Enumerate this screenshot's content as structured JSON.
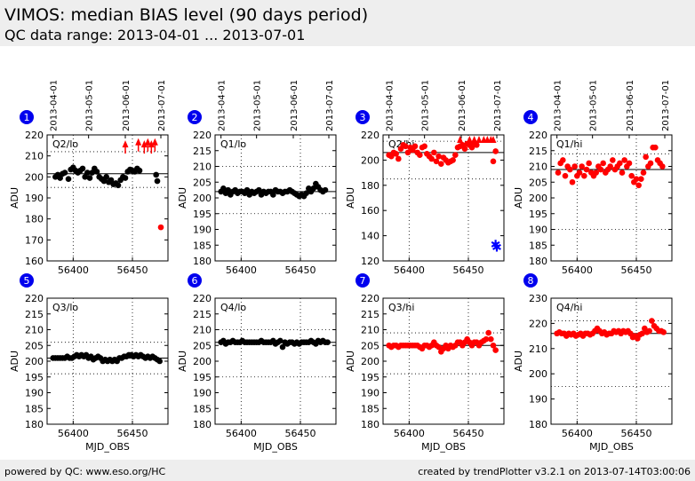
{
  "header": {
    "title": "VIMOS: median BIAS level (90 days period)",
    "subtitle": "QC data range: 2013-04-01 ... 2013-07-01"
  },
  "footer": {
    "left": "powered by QC: www.eso.org/HC",
    "right": "created by trendPlotter v3.2.1 on 2013-07-14T03:00:06"
  },
  "top_axis": {
    "dates": [
      "2013-04-01",
      "2013-05-01",
      "2013-06-01",
      "2013-07-01"
    ],
    "mjd": [
      56383,
      56413,
      56444,
      56474
    ]
  },
  "colors": {
    "lo": "#000000",
    "hi": "#ff0000",
    "outlier": "#0000ff",
    "badge": "#0000ee"
  },
  "chart_data": [
    {
      "type": "scatter",
      "badge": "1",
      "label": "Q2/lo",
      "xlabel": "",
      "ylabel": "ADU",
      "xlim": [
        56378,
        56480
      ],
      "ylim": [
        160,
        220
      ],
      "yticks": [
        160,
        170,
        180,
        190,
        200,
        210,
        220
      ],
      "xticks": [
        56400,
        56450
      ],
      "ref_line": 201.5,
      "dotted_lines": [
        212,
        195
      ],
      "color": "#000000",
      "x": [
        56385,
        56387,
        56389,
        56391,
        56393,
        56396,
        56398,
        56400,
        56402,
        56404,
        56406,
        56408,
        56410,
        56412,
        56414,
        56416,
        56418,
        56420,
        56422,
        56424,
        56426,
        56428,
        56430,
        56432,
        56434,
        56436,
        56438,
        56440,
        56442,
        56444,
        56446,
        56448,
        56450,
        56452,
        56454,
        56456,
        56470
      ],
      "y": [
        200,
        201,
        199.5,
        201.5,
        202,
        199,
        203.5,
        204.5,
        203,
        202,
        203,
        204,
        200,
        202,
        199.5,
        202,
        204,
        202.5,
        200,
        199,
        198,
        200,
        197.5,
        198.5,
        196.5,
        197,
        196,
        198.5,
        200,
        199.5,
        202.5,
        203.5,
        203,
        202.5,
        204,
        203,
        201
      ],
      "markers": [
        {
          "x": 56444,
          "y": 217,
          "kind": "arrow",
          "color": "#ff0000"
        },
        {
          "x": 56455,
          "y": 218,
          "kind": "arrow",
          "color": "#ff0000"
        },
        {
          "x": 56460,
          "y": 217,
          "kind": "arrow",
          "color": "#ff0000"
        },
        {
          "x": 56463,
          "y": 218,
          "kind": "arrow",
          "color": "#ff0000"
        },
        {
          "x": 56466,
          "y": 217,
          "kind": "arrow",
          "color": "#ff0000"
        },
        {
          "x": 56469,
          "y": 218,
          "kind": "arrow",
          "color": "#ff0000"
        },
        {
          "x": 56471,
          "y": 198,
          "kind": "dot",
          "color": "#000000"
        },
        {
          "x": 56474,
          "y": 176,
          "kind": "dot",
          "color": "#ff0000"
        }
      ]
    },
    {
      "type": "scatter",
      "badge": "2",
      "label": "Q1/lo",
      "xlabel": "",
      "ylabel": "ADU",
      "xlim": [
        56378,
        56480
      ],
      "ylim": [
        180,
        220
      ],
      "yticks": [
        180,
        185,
        190,
        195,
        200,
        205,
        210,
        215,
        220
      ],
      "xticks": [
        56400,
        56450
      ],
      "ref_line": 202,
      "dotted_lines": [
        210,
        195
      ],
      "color": "#000000",
      "x": [
        56383,
        56385,
        56387,
        56389,
        56391,
        56393,
        56395,
        56397,
        56399,
        56401,
        56403,
        56405,
        56407,
        56409,
        56411,
        56413,
        56415,
        56417,
        56419,
        56421,
        56423,
        56425,
        56427,
        56429,
        56431,
        56433,
        56435,
        56437,
        56439,
        56441,
        56443,
        56445,
        56447,
        56449,
        56451,
        56453,
        56455,
        56457,
        56459,
        56461,
        56463,
        56465,
        56467,
        56469,
        56471
      ],
      "y": [
        202,
        203,
        201.5,
        202.5,
        201,
        202,
        202.5,
        201.5,
        202,
        202,
        201.5,
        202.5,
        201,
        202,
        201.5,
        202,
        202.5,
        201,
        202,
        201.5,
        202,
        202,
        201,
        202.5,
        202,
        202,
        201.5,
        202,
        202,
        202.5,
        202,
        201.5,
        201,
        200.5,
        201,
        200.5,
        201.5,
        203,
        202,
        203,
        204.5,
        203.5,
        202.5,
        202,
        202.5
      ],
      "markers": []
    },
    {
      "type": "scatter",
      "badge": "3",
      "label": "Q2/hi",
      "xlabel": "",
      "ylabel": "ADU",
      "xlim": [
        56378,
        56480
      ],
      "ylim": [
        120,
        220
      ],
      "yticks": [
        120,
        140,
        160,
        180,
        200,
        220
      ],
      "xticks": [
        56400,
        56450
      ],
      "ref_line": 206,
      "dotted_lines": [
        215,
        185
      ],
      "color": "#ff0000",
      "x": [
        56383,
        56385,
        56387,
        56389,
        56391,
        56393,
        56395,
        56397,
        56399,
        56401,
        56403,
        56405,
        56407,
        56409,
        56411,
        56413,
        56415,
        56417,
        56419,
        56421,
        56423,
        56425,
        56427,
        56429,
        56431,
        56433,
        56435,
        56437,
        56439,
        56441,
        56443,
        56445,
        56447,
        56449,
        56451,
        56453,
        56455,
        56457,
        56471,
        56473
      ],
      "y": [
        204,
        203,
        206,
        205,
        201,
        209,
        212,
        211,
        206,
        210,
        208,
        211,
        206,
        204,
        210,
        211,
        205,
        203,
        201,
        206,
        199,
        203,
        197,
        202,
        200,
        198,
        199,
        200,
        204,
        210,
        211,
        212,
        209,
        213,
        212,
        210,
        214,
        212,
        199,
        207
      ],
      "markers": [
        {
          "x": 56443,
          "y": 224,
          "kind": "arrow",
          "color": "#ff0000"
        },
        {
          "x": 56451,
          "y": 224,
          "kind": "arrow",
          "color": "#ff0000"
        },
        {
          "x": 56455,
          "y": 224,
          "kind": "arrow",
          "color": "#ff0000"
        },
        {
          "x": 56459,
          "y": 224,
          "kind": "arrow",
          "color": "#ff0000"
        },
        {
          "x": 56463,
          "y": 224,
          "kind": "arrow",
          "color": "#ff0000"
        },
        {
          "x": 56466,
          "y": 224,
          "kind": "arrow",
          "color": "#ff0000"
        },
        {
          "x": 56469,
          "y": 224,
          "kind": "arrow",
          "color": "#ff0000"
        },
        {
          "x": 56471,
          "y": 224,
          "kind": "arrow",
          "color": "#ff0000"
        },
        {
          "x": 56473,
          "y": 133,
          "kind": "star",
          "color": "#0000ff"
        },
        {
          "x": 56474,
          "y": 131,
          "kind": "star",
          "color": "#0000ff"
        }
      ]
    },
    {
      "type": "scatter",
      "badge": "4",
      "label": "Q1/hi",
      "xlabel": "",
      "ylabel": "ADU",
      "xlim": [
        56378,
        56480
      ],
      "ylim": [
        180,
        220
      ],
      "yticks": [
        180,
        185,
        190,
        195,
        200,
        205,
        210,
        215,
        220
      ],
      "xticks": [
        56400,
        56450
      ],
      "ref_line": 209,
      "dotted_lines": [
        214,
        190
      ],
      "color": "#ff0000",
      "x": [
        56384,
        56386,
        56388,
        56390,
        56392,
        56394,
        56396,
        56398,
        56400,
        56402,
        56404,
        56406,
        56408,
        56410,
        56412,
        56414,
        56416,
        56418,
        56420,
        56422,
        56424,
        56426,
        56428,
        56430,
        56432,
        56434,
        56436,
        56438,
        56440,
        56442,
        56444,
        56446,
        56448,
        56450,
        56452,
        56454,
        56456,
        56458,
        56460,
        56462,
        56464,
        56466,
        56468,
        56470,
        56472
      ],
      "y": [
        208,
        211,
        212,
        207,
        210,
        209,
        205,
        210,
        207,
        208,
        210,
        207,
        209,
        211,
        208,
        207,
        208,
        210,
        209,
        211,
        208,
        209,
        210,
        212,
        209,
        210,
        211,
        208,
        212,
        210,
        211,
        207,
        205,
        206,
        204,
        206,
        208,
        213,
        210,
        211,
        216,
        216,
        212,
        211,
        210
      ],
      "markers": []
    },
    {
      "type": "scatter",
      "badge": "5",
      "label": "Q3/lo",
      "xlabel": "MJD_OBS",
      "ylabel": "ADU",
      "xlim": [
        56378,
        56480
      ],
      "ylim": [
        180,
        220
      ],
      "yticks": [
        180,
        185,
        190,
        195,
        200,
        205,
        210,
        215,
        220
      ],
      "xticks": [
        56400,
        56450
      ],
      "ref_line": 201,
      "dotted_lines": [
        206,
        196
      ],
      "color": "#000000",
      "x": [
        56383,
        56385,
        56387,
        56389,
        56391,
        56393,
        56395,
        56397,
        56399,
        56401,
        56403,
        56405,
        56407,
        56409,
        56411,
        56413,
        56415,
        56417,
        56419,
        56421,
        56423,
        56425,
        56427,
        56429,
        56431,
        56433,
        56435,
        56437,
        56439,
        56441,
        56443,
        56445,
        56447,
        56449,
        56451,
        56453,
        56455,
        56457,
        56459,
        56461,
        56463,
        56465,
        56467,
        56469,
        56471,
        56473
      ],
      "y": [
        201,
        201,
        201,
        201,
        201,
        201,
        201.5,
        201,
        201,
        201.5,
        202,
        201.5,
        202,
        201.5,
        202,
        201,
        201.5,
        200.5,
        201,
        201.5,
        201,
        200,
        200.5,
        200,
        200.5,
        200,
        200.5,
        200,
        201,
        201,
        201.5,
        201.5,
        202,
        202,
        201.5,
        202,
        201.5,
        202,
        201.5,
        201,
        201.5,
        201,
        201.5,
        201,
        200.5,
        200
      ],
      "markers": []
    },
    {
      "type": "scatter",
      "badge": "6",
      "label": "Q4/lo",
      "xlabel": "MJD_OBS",
      "ylabel": "ADU",
      "xlim": [
        56378,
        56480
      ],
      "ylim": [
        180,
        220
      ],
      "yticks": [
        180,
        185,
        190,
        195,
        200,
        205,
        210,
        215,
        220
      ],
      "xticks": [
        56400,
        56450
      ],
      "ref_line": 206,
      "dotted_lines": [
        210,
        195
      ],
      "color": "#000000",
      "x": [
        56383,
        56385,
        56387,
        56389,
        56391,
        56393,
        56395,
        56397,
        56399,
        56401,
        56403,
        56405,
        56407,
        56409,
        56411,
        56413,
        56415,
        56417,
        56419,
        56421,
        56423,
        56425,
        56427,
        56429,
        56431,
        56433,
        56435,
        56437,
        56439,
        56441,
        56443,
        56445,
        56447,
        56449,
        56451,
        56453,
        56455,
        56457,
        56459,
        56461,
        56463,
        56465,
        56467,
        56469,
        56471,
        56473
      ],
      "y": [
        206,
        206.5,
        205.5,
        206,
        206,
        206.5,
        206,
        206,
        206,
        206.5,
        206,
        206,
        206,
        206,
        206,
        206,
        206,
        206.5,
        206,
        206,
        206,
        206,
        206.5,
        205.5,
        206,
        206.5,
        204.5,
        206,
        205.5,
        206,
        206,
        205.5,
        206,
        205.5,
        206,
        206,
        206,
        206,
        206.5,
        206,
        205.5,
        206.5,
        206,
        206.5,
        206,
        206
      ],
      "markers": []
    },
    {
      "type": "scatter",
      "badge": "7",
      "label": "Q3/hi",
      "xlabel": "MJD_OBS",
      "ylabel": "ADU",
      "xlim": [
        56378,
        56480
      ],
      "ylim": [
        180,
        220
      ],
      "yticks": [
        180,
        185,
        190,
        195,
        200,
        205,
        210,
        215,
        220
      ],
      "xticks": [
        56400,
        56450
      ],
      "ref_line": 205,
      "dotted_lines": [
        209,
        196
      ],
      "color": "#ff0000",
      "x": [
        56383,
        56385,
        56387,
        56389,
        56391,
        56393,
        56395,
        56397,
        56399,
        56401,
        56403,
        56405,
        56407,
        56409,
        56411,
        56413,
        56415,
        56417,
        56419,
        56421,
        56423,
        56425,
        56427,
        56429,
        56431,
        56433,
        56435,
        56437,
        56439,
        56441,
        56443,
        56445,
        56447,
        56449,
        56451,
        56453,
        56455,
        56457,
        56459,
        56461,
        56463,
        56465,
        56467,
        56469,
        56471,
        56473
      ],
      "y": [
        205,
        204.5,
        205,
        205,
        204.5,
        205,
        205,
        205,
        205,
        205,
        205,
        205,
        205,
        204.5,
        204,
        205,
        205,
        204.5,
        205,
        206,
        205,
        204.5,
        203,
        204,
        205,
        204,
        205,
        204.5,
        205,
        206,
        206,
        205,
        206,
        207,
        206,
        205,
        206,
        206,
        205,
        206,
        206.5,
        207,
        209,
        207,
        205,
        203.5
      ],
      "markers": []
    },
    {
      "type": "scatter",
      "badge": "8",
      "label": "Q4/hi",
      "xlabel": "MJD_OBS",
      "ylabel": "ADU",
      "xlim": [
        56378,
        56480
      ],
      "ylim": [
        180,
        230
      ],
      "yticks": [
        180,
        190,
        200,
        210,
        220,
        230
      ],
      "xticks": [
        56400,
        56450
      ],
      "ref_line": 216,
      "dotted_lines": [
        221,
        195
      ],
      "color": "#ff0000",
      "x": [
        56383,
        56385,
        56387,
        56389,
        56391,
        56393,
        56395,
        56397,
        56399,
        56401,
        56403,
        56405,
        56407,
        56409,
        56411,
        56413,
        56415,
        56417,
        56419,
        56421,
        56423,
        56425,
        56427,
        56429,
        56431,
        56433,
        56435,
        56437,
        56439,
        56441,
        56443,
        56445,
        56447,
        56449,
        56451,
        56453,
        56455,
        56457,
        56459,
        56461,
        56463,
        56465,
        56467,
        56469,
        56471,
        56473
      ],
      "y": [
        216,
        216.5,
        216,
        216,
        215,
        216,
        215.5,
        216,
        215,
        215.5,
        216,
        215,
        216,
        216,
        215.5,
        216,
        217,
        218,
        217,
        216,
        216.5,
        215.5,
        216,
        216,
        217,
        216.5,
        217,
        216,
        217,
        216.5,
        217,
        216,
        214.5,
        215,
        214,
        215.5,
        216,
        218,
        216.5,
        217,
        221,
        219,
        218,
        217,
        217,
        216.5
      ],
      "markers": []
    }
  ]
}
